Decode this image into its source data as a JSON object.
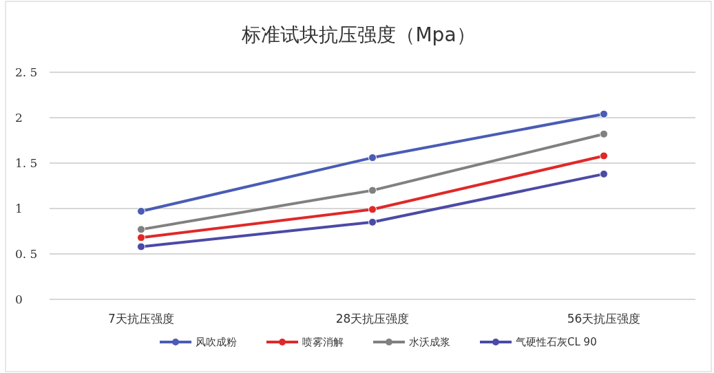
{
  "chart_data": {
    "type": "line",
    "title": "标准试块抗压强度（Mpa）",
    "categories": [
      "7天抗压强度",
      "28天抗压强度",
      "56天抗压强度"
    ],
    "series": [
      {
        "name": "风吹成粉",
        "color": "#4a5cb4",
        "values": [
          0.97,
          1.56,
          2.04
        ]
      },
      {
        "name": "喷雾消解",
        "color": "#e02828",
        "values": [
          0.68,
          0.99,
          1.58
        ]
      },
      {
        "name": "水沃成浆",
        "color": "#808080",
        "values": [
          0.77,
          1.2,
          1.82
        ]
      },
      {
        "name": "气硬性石灰CL  90",
        "color": "#4b4aa6",
        "values": [
          0.58,
          0.85,
          1.38
        ]
      }
    ],
    "ylim": [
      0,
      2.5
    ],
    "yticks": [
      0,
      {
        "value": 0.5,
        "label": "0. 5"
      },
      1,
      {
        "value": 1.5,
        "label": "1. 5"
      },
      2,
      {
        "value": 2.5,
        "label": "2. 5"
      }
    ],
    "grid": "y",
    "legend": "bottom",
    "marker": "circle",
    "line_style": "solid"
  }
}
